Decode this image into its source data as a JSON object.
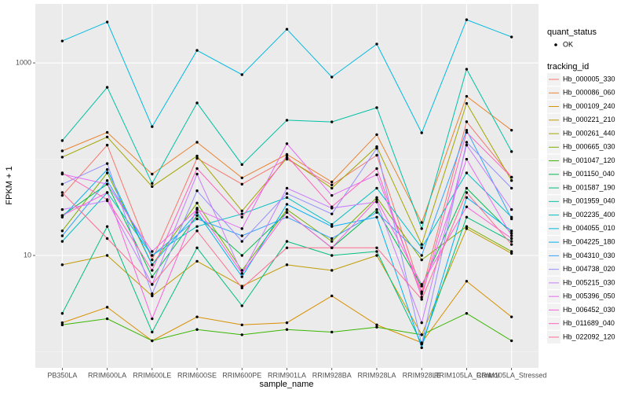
{
  "chart_data": {
    "type": "line",
    "x_label": "sample_name",
    "y_label": "FPKM + 1",
    "log_y": true,
    "grid": true,
    "ylim": [
      0.68,
      4100
    ],
    "yticks": [
      10,
      1000
    ],
    "legend_position": "right",
    "point_legend_title": "quant_status",
    "point_legend_label": "OK",
    "point_color": "#000000",
    "legend_title": "tracking_id",
    "categories": [
      "PB350LA",
      "RRIM600LA",
      "RRIM600LE",
      "RRIM600SE",
      "RRIM600PE",
      "RRIM901LA",
      "RRIM928BA",
      "RRIM928LA",
      "RRIM928LE",
      "RRIM105LA_Control",
      "RRIM105LA_Stressed"
    ],
    "series": [
      {
        "name": "Hb_000005_330",
        "color": "#F8766D",
        "values": [
          42,
          140,
          9,
          102,
          55,
          100,
          54,
          110,
          4.2,
          245,
          65
        ]
      },
      {
        "name": "Hb_000086_060",
        "color": "#EA8331",
        "values": [
          122,
          190,
          70,
          150,
          64,
          112,
          58,
          180,
          22,
          450,
          200
        ]
      },
      {
        "name": "Hb_000109_240",
        "color": "#D89000",
        "values": [
          2,
          2.9,
          1.3,
          2.3,
          1.9,
          2,
          3.8,
          1.9,
          1.24,
          5.4,
          2.3
        ]
      },
      {
        "name": "Hb_000221_210",
        "color": "#C09B00",
        "values": [
          8,
          10,
          3.8,
          8.7,
          4.8,
          8,
          7,
          10,
          1.5,
          19,
          10.5
        ]
      },
      {
        "name": "Hb_000261_440",
        "color": "#A3A500",
        "values": [
          105,
          170,
          52,
          108,
          29,
          103,
          50,
          135,
          13,
          380,
          60
        ]
      },
      {
        "name": "Hb_000665_030",
        "color": "#7CAE00",
        "values": [
          18,
          72,
          8,
          35,
          7,
          30,
          14,
          40,
          9,
          20,
          11
        ]
      },
      {
        "name": "Hb_001047_120",
        "color": "#39B600",
        "values": [
          1.9,
          2.2,
          1.3,
          1.7,
          1.5,
          1.7,
          1.6,
          1.8,
          1.5,
          2.5,
          1.3
        ]
      },
      {
        "name": "Hb_001150_040",
        "color": "#00BB4E",
        "values": [
          26,
          55,
          6,
          26,
          10,
          28,
          12,
          30,
          4.8,
          50,
          17
        ]
      },
      {
        "name": "Hb_001587_190",
        "color": "#00BF7D",
        "values": [
          2.5,
          20,
          1.6,
          12,
          3,
          14,
          10,
          11,
          1.2,
          25,
          14
        ]
      },
      {
        "name": "Hb_001959_040",
        "color": "#00C1A3",
        "values": [
          156,
          558,
          56,
          384,
          88,
          254,
          244,
          343,
          19,
          861,
          120
        ]
      },
      {
        "name": "Hb_002235_400",
        "color": "#00BFC4",
        "values": [
          14,
          45,
          10,
          20,
          27,
          40,
          21,
          50,
          12,
          72,
          25
        ]
      },
      {
        "name": "Hb_004055_010",
        "color": "#00BAE0",
        "values": [
          1690,
          2660,
          218,
          1350,
          755,
          2240,
          713,
          1570,
          188,
          2810,
          1860
        ]
      },
      {
        "name": "Hb_004225_180",
        "color": "#00B0F6",
        "values": [
          25,
          78,
          8,
          28,
          6,
          34,
          20,
          25,
          1.1,
          40,
          18
        ]
      },
      {
        "name": "Hb_004310_030",
        "color": "#35A2FF",
        "values": [
          16,
          60,
          10,
          24,
          16,
          25,
          15,
          28,
          10,
          200,
          24
        ]
      },
      {
        "name": "Hb_004738_020",
        "color": "#9590FF",
        "values": [
          55,
          90,
          4,
          47,
          14,
          44,
          27,
          130,
          1.2,
          150,
          50
        ]
      },
      {
        "name": "Hb_005215_030",
        "color": "#C77CFF",
        "values": [
          30,
          37,
          5,
          70,
          6.5,
          50,
          31,
          36,
          2,
          140,
          30
        ]
      },
      {
        "name": "Hb_005396_050",
        "color": "#E76BF3",
        "values": [
          70,
          55,
          11,
          30,
          19,
          145,
          42,
          69,
          4,
          100,
          16
        ]
      },
      {
        "name": "Hb_006452_030",
        "color": "#FA62DB",
        "values": [
          26,
          45,
          2.2,
          31,
          6.5,
          28,
          12,
          38,
          5,
          32,
          15
        ]
      },
      {
        "name": "Hb_011689_040",
        "color": "#FF62BC",
        "values": [
          72,
          38,
          7,
          80,
          25,
          108,
          32,
          80,
          3.7,
          190,
          65
        ]
      },
      {
        "name": "Hb_022092_120",
        "color": "#FF6C91",
        "values": [
          45,
          15,
          5,
          18,
          4.6,
          12,
          12,
          12,
          3.5,
          45,
          13
        ]
      }
    ]
  }
}
